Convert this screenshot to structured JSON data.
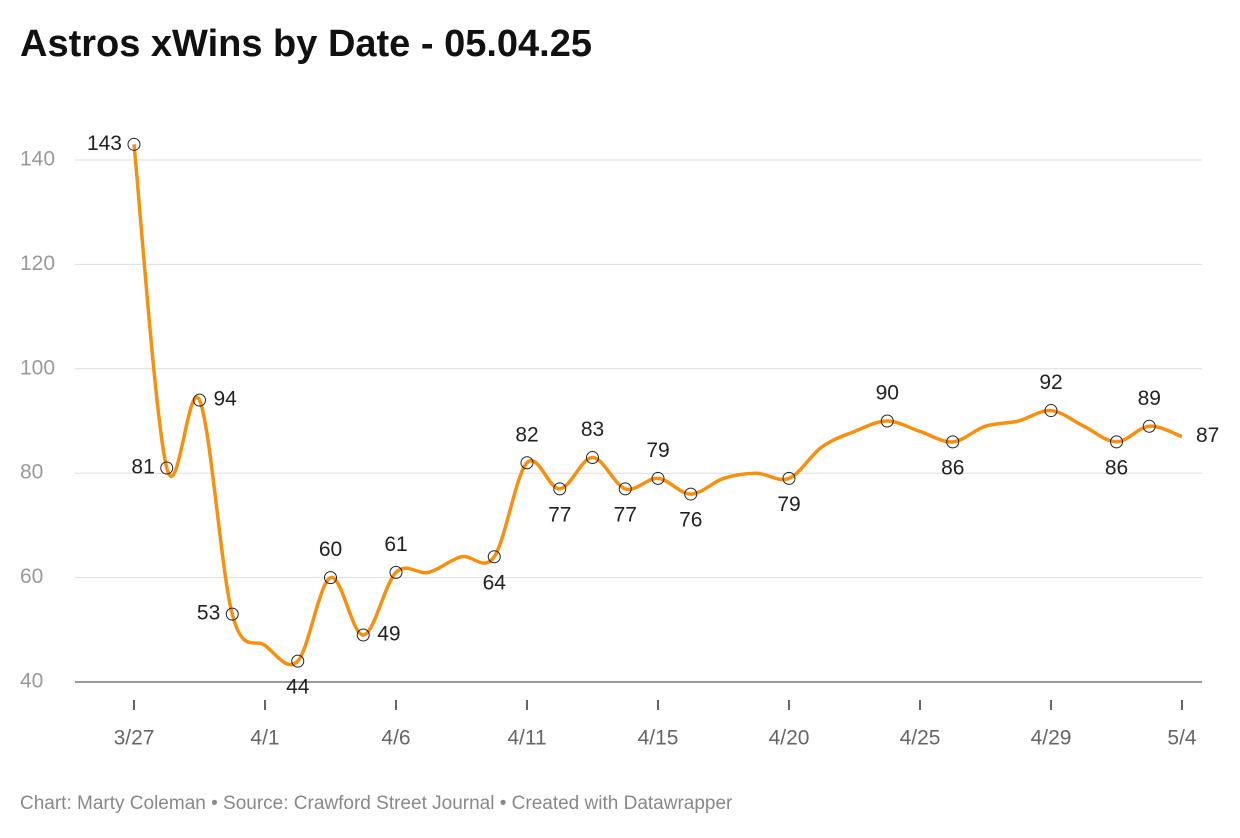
{
  "chart_data": {
    "type": "line",
    "title": "Astros xWins by Date - 05.04.25",
    "footer": "Chart: Marty Coleman • Source: Crawford Street Journal • Created with Datawrapper",
    "categories": [
      "3/27",
      null,
      null,
      null,
      "4/1",
      null,
      null,
      null,
      "4/6",
      null,
      null,
      null,
      "4/11",
      null,
      null,
      null,
      "4/15",
      null,
      null,
      null,
      "4/20",
      null,
      null,
      null,
      "4/25",
      null,
      null,
      null,
      "4/29",
      null,
      null,
      null,
      "5/4"
    ],
    "series": [
      {
        "name": "xWins",
        "color": "#f7900f",
        "values": [
          143,
          81,
          94,
          53,
          47,
          44,
          60,
          49,
          61,
          61,
          64,
          64,
          82,
          77,
          83,
          77,
          79,
          76,
          79,
          80,
          79,
          85,
          88,
          90,
          88,
          86,
          89,
          90,
          92,
          89,
          86,
          89,
          87
        ],
        "value_labels": [
          "143",
          "81",
          "94",
          "53",
          null,
          "44",
          "60",
          "49",
          "61",
          null,
          null,
          "64",
          "82",
          "77",
          "83",
          "77",
          "79",
          "76",
          null,
          null,
          "79",
          null,
          null,
          "90",
          null,
          "86",
          null,
          null,
          "92",
          null,
          "86",
          "89",
          "87"
        ]
      }
    ],
    "ylim": [
      40,
      140
    ],
    "yticks": [
      40,
      60,
      80,
      100,
      120,
      140
    ],
    "grid": true
  }
}
